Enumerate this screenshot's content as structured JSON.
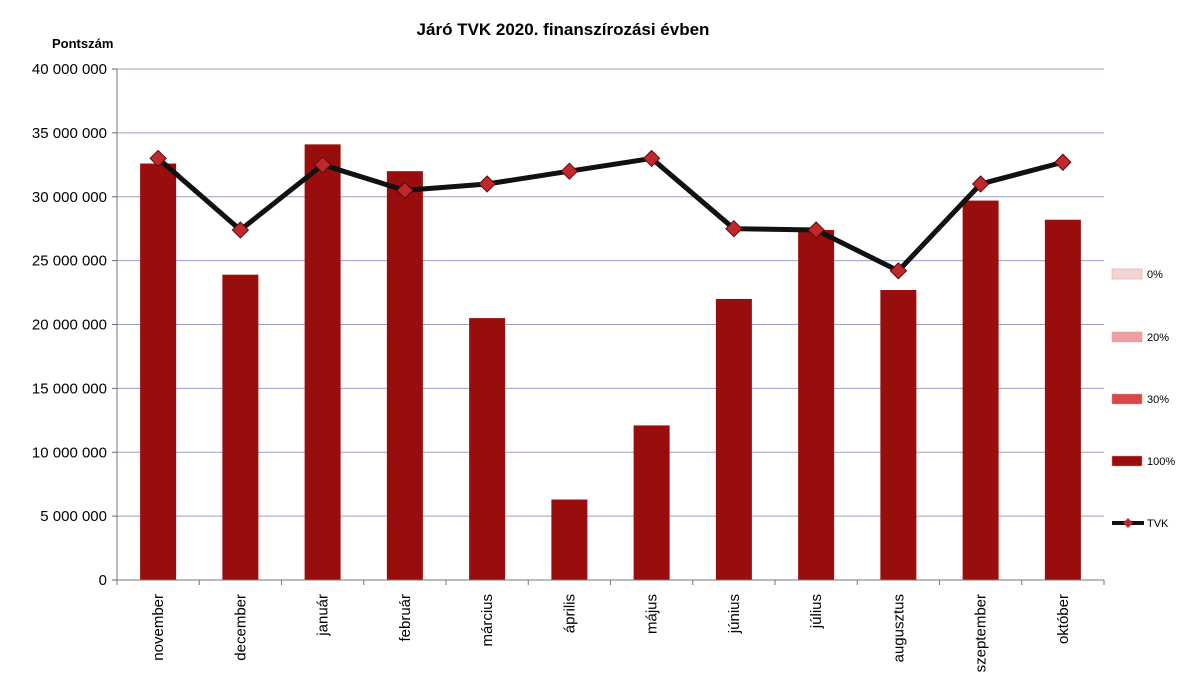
{
  "chart_data": {
    "type": "bar",
    "title": "Járó TVK 2020. finanszírozási évben",
    "ylabel": "Pontszám",
    "xlabel": "",
    "ylim": [
      0,
      40000000
    ],
    "yticks": [
      0,
      5000000,
      10000000,
      15000000,
      20000000,
      25000000,
      30000000,
      35000000,
      40000000
    ],
    "ytick_labels": [
      "0",
      "5 000 000",
      "10 000 000",
      "15 000 000",
      "20 000 000",
      "25 000 000",
      "30 000 000",
      "35 000 000",
      "40 000 000"
    ],
    "grid": true,
    "legend_position": "right",
    "categories": [
      "november",
      "december",
      "január",
      "február",
      "március",
      "április",
      "május",
      "június",
      "július",
      "augusztus",
      "szeptember",
      "október"
    ],
    "series": [
      {
        "name": "0%",
        "type": "bar",
        "color": "#f6d4d4",
        "values": [
          0,
          0,
          0,
          0,
          0,
          0,
          0,
          0,
          0,
          0,
          0,
          0
        ]
      },
      {
        "name": "20%",
        "type": "bar",
        "color": "#eea0a0",
        "values": [
          0,
          0,
          0,
          0,
          0,
          0,
          0,
          0,
          0,
          0,
          0,
          0
        ]
      },
      {
        "name": "30%",
        "type": "bar",
        "color": "#d9474b",
        "values": [
          0,
          0,
          0,
          0,
          0,
          0,
          0,
          0,
          0,
          0,
          0,
          0
        ]
      },
      {
        "name": "100%",
        "type": "bar",
        "color": "#990d0d",
        "values": [
          32600000,
          23900000,
          34100000,
          32000000,
          20500000,
          6300000,
          12100000,
          22000000,
          27400000,
          22700000,
          29700000,
          28200000
        ]
      },
      {
        "name": "TVK",
        "type": "line",
        "color": "#111111",
        "marker_color": "#c0282d",
        "values": [
          33000000,
          27400000,
          32500000,
          30500000,
          31000000,
          32000000,
          33000000,
          27500000,
          27400000,
          24200000,
          31000000,
          32700000
        ]
      }
    ]
  }
}
